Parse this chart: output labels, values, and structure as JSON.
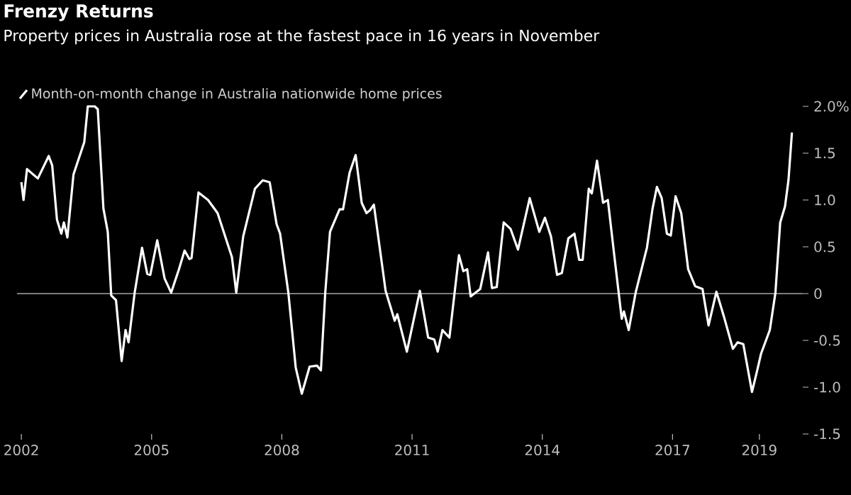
{
  "chart_data": {
    "type": "line",
    "title": "Frenzy Returns",
    "subtitle": "Property prices in Australia rose at the fastest pace in 16 years in November",
    "x": [
      2002.0,
      2002.05,
      2002.13,
      2002.38,
      2002.63,
      2002.71,
      2002.82,
      2002.92,
      2002.98,
      2003.06,
      2003.2,
      2003.45,
      2003.53,
      2003.69,
      2003.76,
      2003.89,
      2003.99,
      2004.07,
      2004.18,
      2004.31,
      2004.4,
      2004.47,
      2004.61,
      2004.78,
      2004.9,
      2004.97,
      2005.13,
      2005.3,
      2005.45,
      2005.63,
      2005.76,
      2005.87,
      2005.92,
      2006.08,
      2006.3,
      2006.52,
      2006.85,
      2006.95,
      2007.11,
      2007.38,
      2007.56,
      2007.72,
      2007.88,
      2007.96,
      2008.15,
      2008.32,
      2008.46,
      2008.64,
      2008.81,
      2008.9,
      2009.0,
      2009.11,
      2009.33,
      2009.41,
      2009.56,
      2009.7,
      2009.84,
      2009.95,
      2010.03,
      2010.12,
      2010.39,
      2010.6,
      2010.66,
      2010.88,
      2011.18,
      2011.37,
      2011.51,
      2011.59,
      2011.7,
      2011.86,
      2012.08,
      2012.18,
      2012.27,
      2012.35,
      2012.57,
      2012.75,
      2012.84,
      2012.95,
      2013.11,
      2013.27,
      2013.44,
      2013.71,
      2013.93,
      2014.06,
      2014.2,
      2014.34,
      2014.45,
      2014.6,
      2014.74,
      2014.85,
      2014.93,
      2015.07,
      2015.14,
      2015.26,
      2015.4,
      2015.51,
      2015.67,
      2015.83,
      2015.88,
      2015.99,
      2016.15,
      2016.41,
      2016.54,
      2016.64,
      2016.75,
      2016.87,
      2016.96,
      2017.07,
      2017.2,
      2017.36,
      2017.52,
      2017.69,
      2017.83,
      2018.01,
      2018.18,
      2018.39,
      2018.5,
      2018.63,
      2018.83,
      2018.94,
      2019.04,
      2019.24,
      2019.37,
      2019.48,
      2019.59,
      2019.67,
      2019.75
    ],
    "series": [
      {
        "name": "Month-on-month change in Australia nationwide home prices",
        "color": "#ffffff",
        "values": [
          1.19,
          1.0,
          1.33,
          1.23,
          1.47,
          1.37,
          0.79,
          0.64,
          0.76,
          0.6,
          1.27,
          1.62,
          2.0,
          2.0,
          1.97,
          0.91,
          0.66,
          -0.02,
          -0.07,
          -0.72,
          -0.39,
          -0.52,
          0.01,
          0.49,
          0.21,
          0.2,
          0.57,
          0.16,
          0.01,
          0.26,
          0.46,
          0.37,
          0.38,
          1.08,
          1.0,
          0.86,
          0.39,
          0.01,
          0.61,
          1.12,
          1.21,
          1.19,
          0.74,
          0.64,
          0.01,
          -0.79,
          -1.07,
          -0.78,
          -0.77,
          -0.82,
          0.01,
          0.66,
          0.9,
          0.9,
          1.29,
          1.48,
          0.97,
          0.86,
          0.89,
          0.95,
          0.03,
          -0.29,
          -0.22,
          -0.62,
          0.03,
          -0.47,
          -0.49,
          -0.62,
          -0.39,
          -0.47,
          0.41,
          0.24,
          0.26,
          -0.03,
          0.05,
          0.44,
          0.06,
          0.07,
          0.76,
          0.69,
          0.47,
          1.02,
          0.66,
          0.81,
          0.61,
          0.2,
          0.22,
          0.59,
          0.64,
          0.36,
          0.36,
          1.12,
          1.07,
          1.42,
          0.97,
          1.0,
          0.36,
          -0.27,
          -0.19,
          -0.39,
          0.01,
          0.49,
          0.91,
          1.14,
          1.02,
          0.64,
          0.62,
          1.04,
          0.86,
          0.26,
          0.08,
          0.05,
          -0.34,
          0.02,
          -0.24,
          -0.59,
          -0.52,
          -0.54,
          -1.05,
          -0.84,
          -0.64,
          -0.39,
          0.01,
          0.76,
          0.93,
          1.21,
          1.72
        ]
      }
    ],
    "xlim": [
      2001.9,
      2020.0
    ],
    "xticks": [
      2002,
      2005,
      2008,
      2011,
      2014,
      2017,
      2019
    ],
    "ylim": [
      -1.5,
      2.0
    ],
    "yticks": [
      {
        "value": -1.5,
        "label": "-1.5"
      },
      {
        "value": -1.0,
        "label": "-1.0"
      },
      {
        "value": -0.5,
        "label": "-0.5"
      },
      {
        "value": 0,
        "label": "0"
      },
      {
        "value": 0.5,
        "label": "0.5"
      },
      {
        "value": 1.0,
        "label": "1.0"
      },
      {
        "value": 1.5,
        "label": "1.5"
      },
      {
        "value": 2.0,
        "label": "2.0%"
      }
    ],
    "ref_lines": [
      {
        "axis": "y",
        "value": 0,
        "color": "#a6a6a6"
      }
    ],
    "legend": "top left",
    "grid": false
  }
}
